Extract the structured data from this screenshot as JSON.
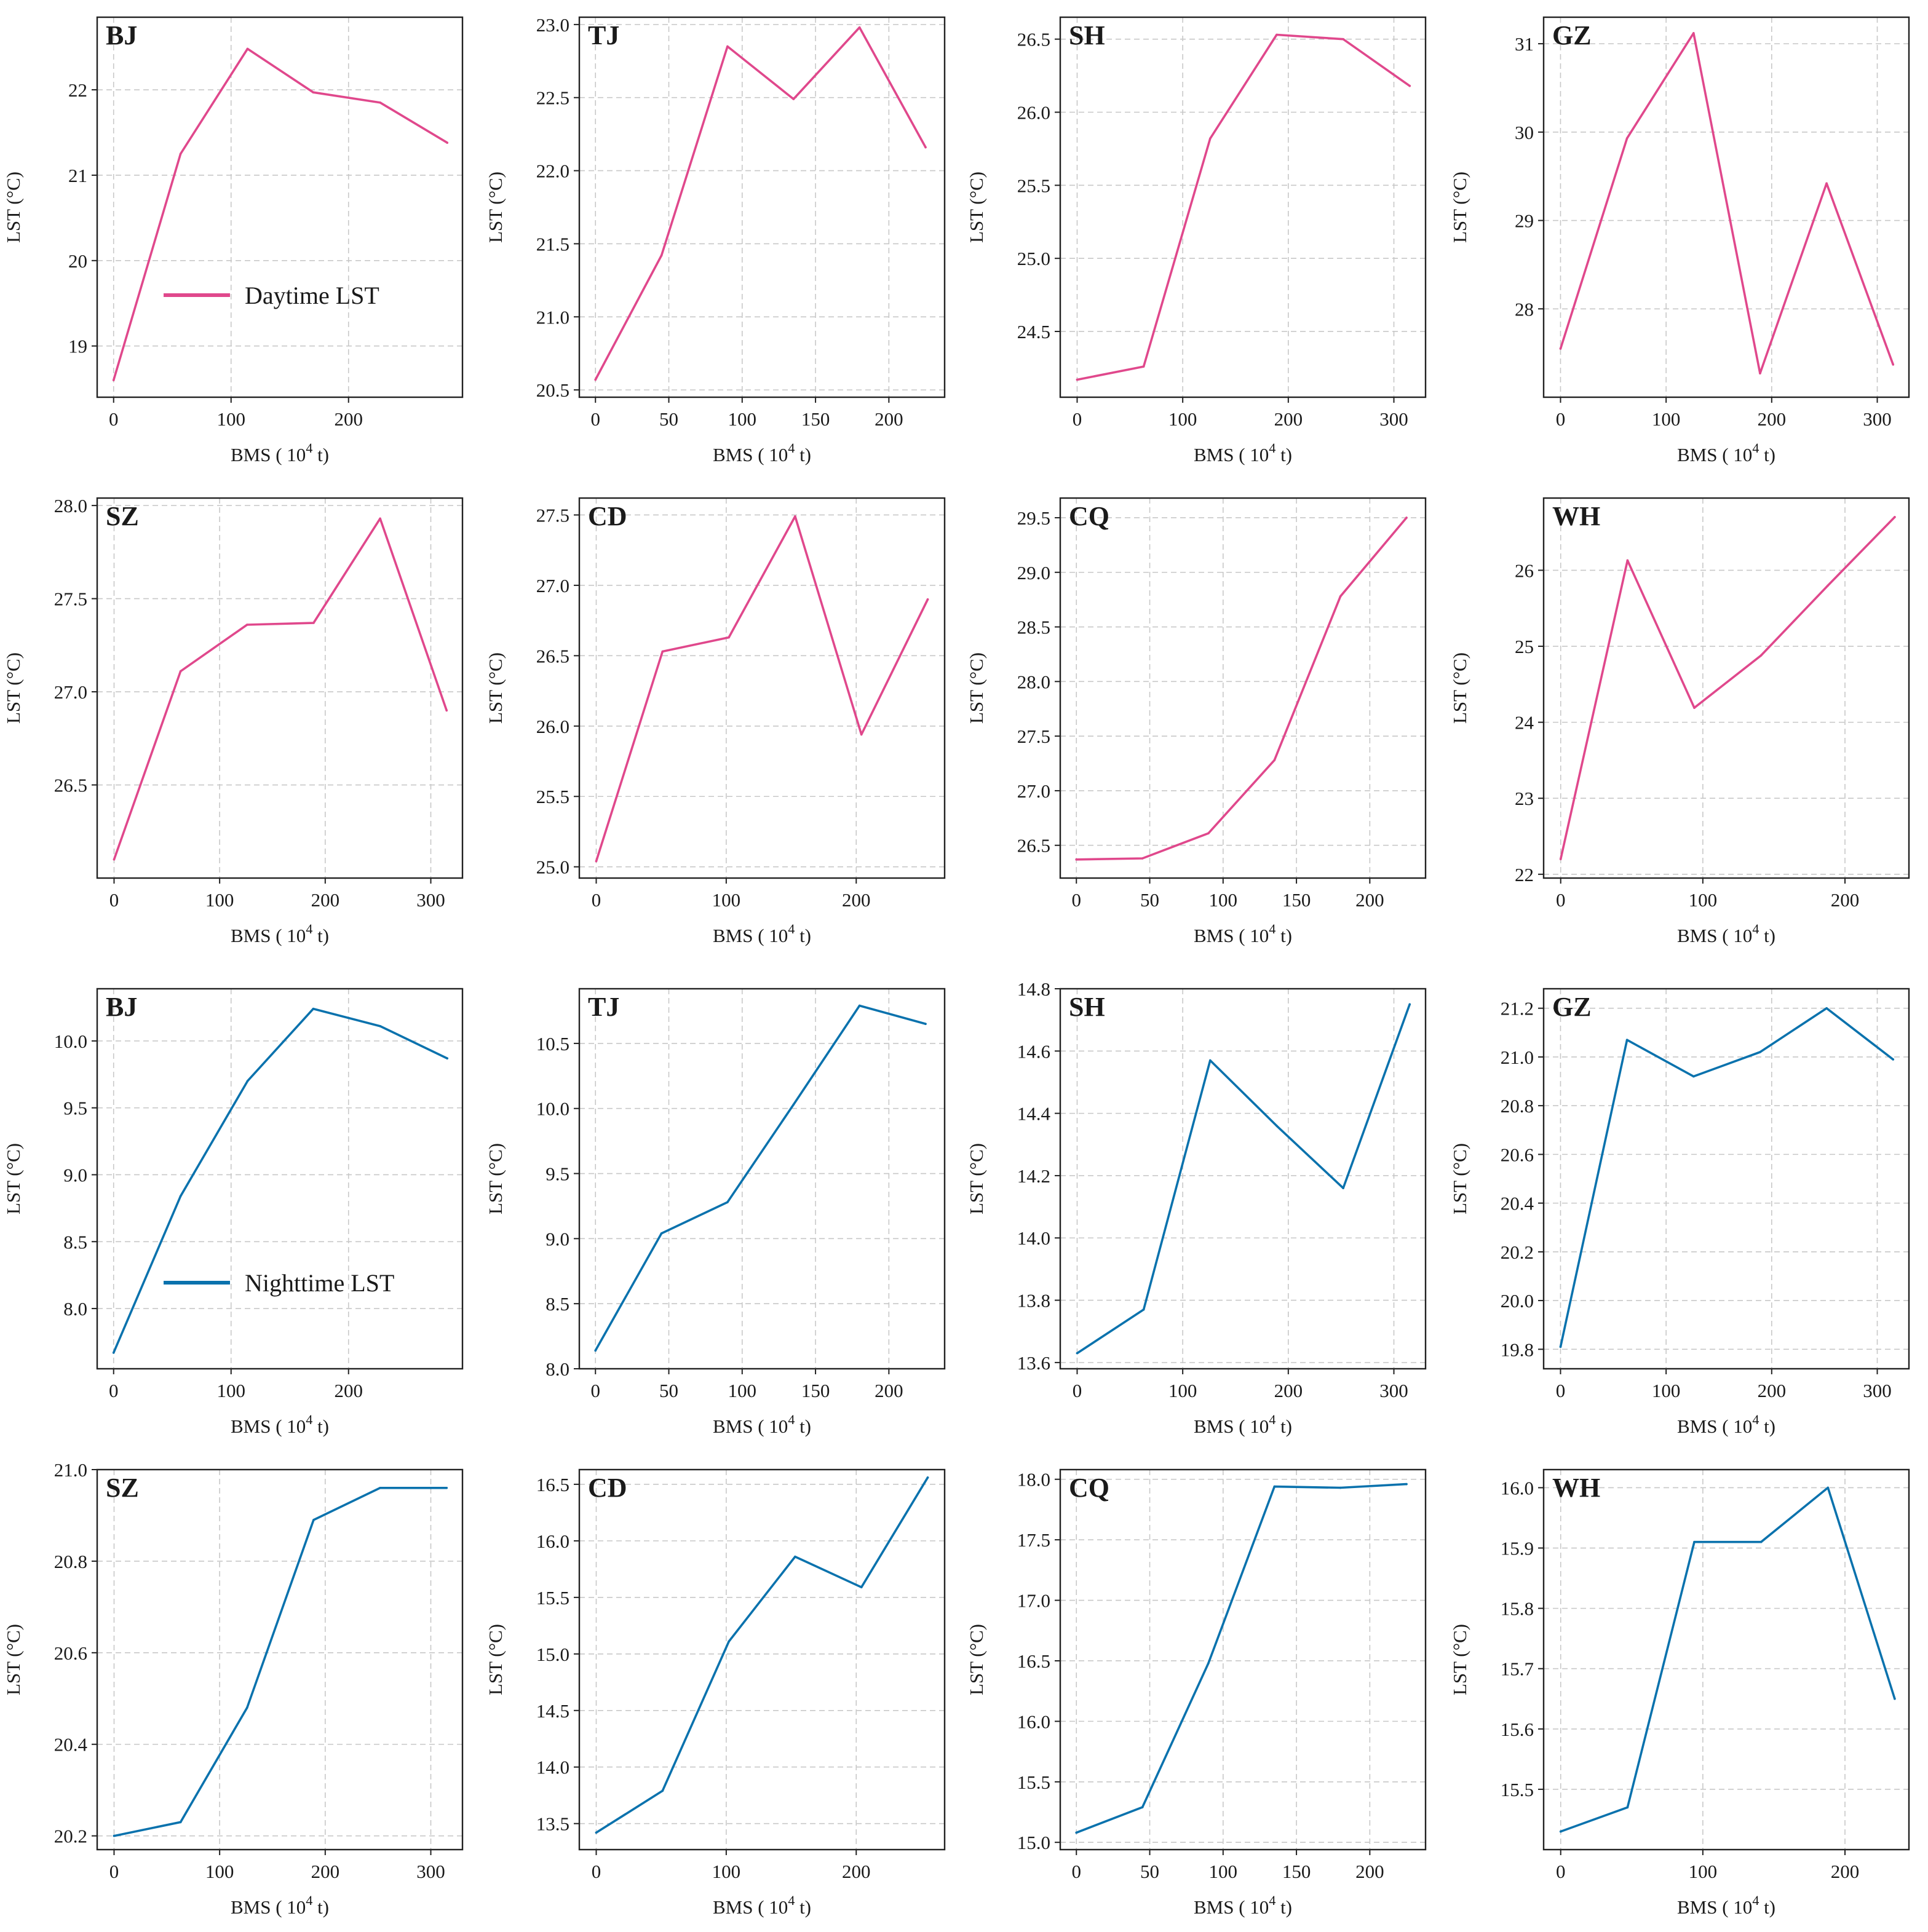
{
  "figure": {
    "series_names": {
      "day": "Daytime LST",
      "night": "Nighttime LST"
    },
    "colors": {
      "day": "#e0488c",
      "night": "#0a72ad"
    },
    "x_axis_label": {
      "prefix": "BMS ( ",
      "base": "10",
      "exponent": "4",
      "suffix": " t)"
    },
    "y_axis_label": "LST (°C)"
  },
  "chart_data": [
    {
      "type": "line",
      "panel": "day-BJ",
      "title": "BJ",
      "series": "day",
      "xlabel": "BMS ( 10^4 t)",
      "ylabel": "LST (°C)",
      "xlim": [
        -14,
        297
      ],
      "ylim": [
        18.4,
        22.85
      ],
      "xticks": [
        0,
        100,
        200
      ],
      "yticks": [
        19,
        20,
        21,
        22
      ],
      "x": [
        0,
        57,
        114,
        170,
        227,
        284
      ],
      "y": [
        18.6,
        21.25,
        22.48,
        21.97,
        21.85,
        21.38
      ],
      "legend": true
    },
    {
      "type": "line",
      "panel": "day-TJ",
      "title": "TJ",
      "series": "day",
      "xlabel": "BMS ( 10^4 t)",
      "ylabel": "LST (°C)",
      "xlim": [
        -11,
        238
      ],
      "ylim": [
        20.45,
        23.05
      ],
      "xticks": [
        0,
        50,
        100,
        150,
        200
      ],
      "yticks": [
        20.5,
        21.0,
        21.5,
        22.0,
        22.5,
        23.0
      ],
      "x": [
        0,
        45,
        90,
        135,
        180,
        225
      ],
      "y": [
        20.57,
        21.42,
        22.85,
        22.49,
        22.98,
        22.16
      ]
    },
    {
      "type": "line",
      "panel": "day-SH",
      "title": "SH",
      "series": "day",
      "xlabel": "BMS ( 10^4 t)",
      "ylabel": "LST (°C)",
      "xlim": [
        -16,
        330
      ],
      "ylim": [
        24.05,
        26.65
      ],
      "xticks": [
        0,
        100,
        200,
        300
      ],
      "yticks": [
        24.5,
        25.0,
        25.5,
        26.0,
        26.5
      ],
      "x": [
        0,
        63,
        126,
        189,
        252,
        315
      ],
      "y": [
        24.17,
        24.26,
        25.82,
        26.53,
        26.5,
        26.18
      ]
    },
    {
      "type": "line",
      "panel": "day-GZ",
      "title": "GZ",
      "series": "day",
      "xlabel": "BMS ( 10^4 t)",
      "ylabel": "LST (°C)",
      "xlim": [
        -16,
        330
      ],
      "ylim": [
        27.0,
        31.3
      ],
      "xticks": [
        0,
        100,
        200,
        300
      ],
      "yticks": [
        28,
        29,
        30,
        31
      ],
      "x": [
        0,
        63,
        126,
        189,
        252,
        315
      ],
      "y": [
        27.55,
        29.93,
        31.12,
        27.27,
        29.42,
        27.37
      ]
    },
    {
      "type": "line",
      "panel": "day-SZ",
      "title": "SZ",
      "series": "day",
      "xlabel": "BMS ( 10^4 t)",
      "ylabel": "LST (°C)",
      "xlim": [
        -16,
        330
      ],
      "ylim": [
        26.0,
        28.04
      ],
      "xticks": [
        0,
        100,
        200,
        300
      ],
      "yticks": [
        26.5,
        27.0,
        27.5,
        28.0
      ],
      "x": [
        0,
        63,
        126,
        189,
        252,
        315
      ],
      "y": [
        26.1,
        27.11,
        27.36,
        27.37,
        27.93,
        26.9
      ]
    },
    {
      "type": "line",
      "panel": "day-CD",
      "title": "CD",
      "series": "day",
      "xlabel": "BMS ( 10^4 t)",
      "ylabel": "LST (°C)",
      "xlim": [
        -13,
        268
      ],
      "ylim": [
        24.92,
        27.62
      ],
      "xticks": [
        0,
        100,
        200
      ],
      "yticks": [
        25.0,
        25.5,
        26.0,
        26.5,
        27.0,
        27.5
      ],
      "x": [
        0,
        51,
        102,
        153,
        204,
        255
      ],
      "y": [
        25.04,
        26.53,
        26.63,
        27.49,
        25.94,
        26.9
      ]
    },
    {
      "type": "line",
      "panel": "day-CQ",
      "title": "CQ",
      "series": "day",
      "xlabel": "BMS ( 10^4 t)",
      "ylabel": "LST (°C)",
      "xlim": [
        -11,
        238
      ],
      "ylim": [
        26.2,
        29.68
      ],
      "xticks": [
        0,
        50,
        100,
        150,
        200
      ],
      "yticks": [
        26.5,
        27.0,
        27.5,
        28.0,
        28.5,
        29.0,
        29.5
      ],
      "x": [
        0,
        45,
        90,
        135,
        180,
        225
      ],
      "y": [
        26.37,
        26.38,
        26.61,
        27.28,
        28.78,
        29.5
      ]
    },
    {
      "type": "line",
      "panel": "day-WH",
      "title": "WH",
      "series": "day",
      "xlabel": "BMS ( 10^4 t)",
      "ylabel": "LST (°C)",
      "xlim": [
        -12,
        245
      ],
      "ylim": [
        21.95,
        26.95
      ],
      "xticks": [
        0,
        100,
        200
      ],
      "yticks": [
        22,
        23,
        24,
        25,
        26
      ],
      "x": [
        0,
        47,
        94,
        141,
        188,
        235
      ],
      "y": [
        22.2,
        26.13,
        24.19,
        24.88,
        25.8,
        26.7
      ]
    },
    {
      "type": "line",
      "panel": "night-BJ",
      "title": "BJ",
      "series": "night",
      "xlabel": "BMS ( 10^4 t)",
      "ylabel": "LST (°C)",
      "xlim": [
        -14,
        297
      ],
      "ylim": [
        7.55,
        10.39
      ],
      "xticks": [
        0,
        100,
        200
      ],
      "yticks": [
        8.0,
        8.5,
        9.0,
        9.5,
        10.0
      ],
      "x": [
        0,
        57,
        114,
        170,
        227,
        284
      ],
      "y": [
        7.67,
        8.84,
        9.7,
        10.24,
        10.11,
        9.87
      ],
      "legend": true
    },
    {
      "type": "line",
      "panel": "night-TJ",
      "title": "TJ",
      "series": "night",
      "xlabel": "BMS ( 10^4 t)",
      "ylabel": "LST (°C)",
      "xlim": [
        -11,
        238
      ],
      "ylim": [
        8.0,
        10.92
      ],
      "xticks": [
        0,
        50,
        100,
        150,
        200
      ],
      "yticks": [
        8.0,
        8.5,
        9.0,
        9.5,
        10.0,
        10.5
      ],
      "x": [
        0,
        45,
        90,
        135,
        180,
        225
      ],
      "y": [
        8.14,
        9.04,
        9.28,
        10.03,
        10.79,
        10.65
      ]
    },
    {
      "type": "line",
      "panel": "night-SH",
      "title": "SH",
      "series": "night",
      "xlabel": "BMS ( 10^4 t)",
      "ylabel": "LST (°C)",
      "xlim": [
        -16,
        330
      ],
      "ylim": [
        13.58,
        14.8
      ],
      "xticks": [
        0,
        100,
        200,
        300
      ],
      "yticks": [
        13.6,
        13.8,
        14.0,
        14.2,
        14.4,
        14.6,
        14.8
      ],
      "x": [
        0,
        63,
        126,
        189,
        252,
        315
      ],
      "y": [
        13.63,
        13.77,
        14.57,
        14.36,
        14.16,
        14.75
      ]
    },
    {
      "type": "line",
      "panel": "night-GZ",
      "title": "GZ",
      "series": "night",
      "xlabel": "BMS ( 10^4 t)",
      "ylabel": "LST (°C)",
      "xlim": [
        -16,
        330
      ],
      "ylim": [
        19.72,
        21.28
      ],
      "xticks": [
        0,
        100,
        200,
        300
      ],
      "yticks": [
        19.8,
        20.0,
        20.2,
        20.4,
        20.6,
        20.8,
        21.0,
        21.2
      ],
      "x": [
        0,
        63,
        126,
        189,
        252,
        315
      ],
      "y": [
        19.81,
        21.07,
        20.92,
        21.02,
        21.2,
        20.99
      ]
    },
    {
      "type": "line",
      "panel": "night-SZ",
      "title": "SZ",
      "series": "night",
      "xlabel": "BMS ( 10^4 t)",
      "ylabel": "LST (°C)",
      "xlim": [
        -16,
        330
      ],
      "ylim": [
        20.17,
        21.0
      ],
      "xticks": [
        0,
        100,
        200,
        300
      ],
      "yticks": [
        20.2,
        20.4,
        20.6,
        20.8,
        21.0
      ],
      "x": [
        0,
        63,
        126,
        189,
        252,
        315
      ],
      "y": [
        20.2,
        20.23,
        20.48,
        20.89,
        20.96,
        20.96
      ]
    },
    {
      "type": "line",
      "panel": "night-CD",
      "title": "CD",
      "series": "night",
      "xlabel": "BMS ( 10^4 t)",
      "ylabel": "LST (°C)",
      "xlim": [
        -13,
        268
      ],
      "ylim": [
        13.27,
        16.63
      ],
      "xticks": [
        0,
        100,
        200
      ],
      "yticks": [
        13.5,
        14.0,
        14.5,
        15.0,
        15.5,
        16.0,
        16.5
      ],
      "x": [
        0,
        51,
        102,
        153,
        204,
        255
      ],
      "y": [
        13.42,
        13.79,
        15.11,
        15.86,
        15.59,
        16.56
      ]
    },
    {
      "type": "line",
      "panel": "night-CQ",
      "title": "CQ",
      "series": "night",
      "xlabel": "BMS ( 10^4 t)",
      "ylabel": "LST (°C)",
      "xlim": [
        -11,
        238
      ],
      "ylim": [
        14.94,
        18.08
      ],
      "xticks": [
        0,
        50,
        100,
        150,
        200
      ],
      "yticks": [
        15.0,
        15.5,
        16.0,
        16.5,
        17.0,
        17.5,
        18.0
      ],
      "x": [
        0,
        45,
        90,
        135,
        180,
        225
      ],
      "y": [
        15.08,
        15.29,
        16.48,
        17.94,
        17.93,
        17.96
      ]
    },
    {
      "type": "line",
      "panel": "night-WH",
      "title": "WH",
      "series": "night",
      "xlabel": "BMS ( 10^4 t)",
      "ylabel": "LST (°C)",
      "xlim": [
        -12,
        245
      ],
      "ylim": [
        15.4,
        16.03
      ],
      "xticks": [
        0,
        100,
        200
      ],
      "yticks": [
        15.5,
        15.6,
        15.7,
        15.8,
        15.9,
        16.0
      ],
      "x": [
        0,
        47,
        94,
        141,
        188,
        235
      ],
      "y": [
        15.43,
        15.47,
        15.91,
        15.91,
        16.0,
        15.65
      ]
    }
  ]
}
